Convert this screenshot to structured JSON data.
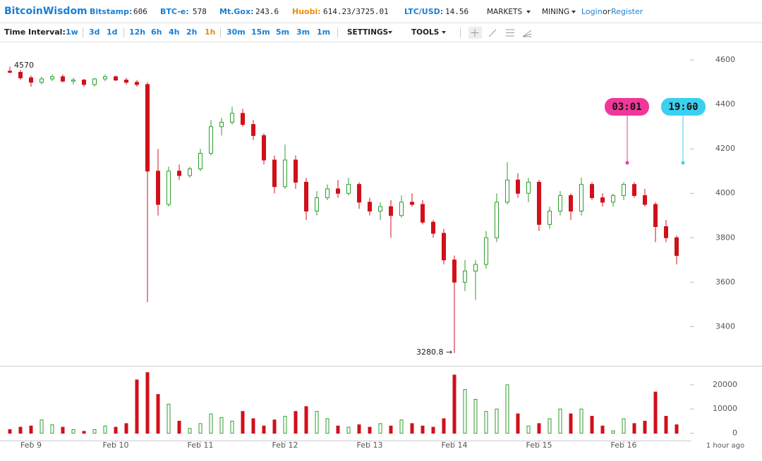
{
  "header": {
    "brand": "BitcoinWisdom",
    "tickers": [
      {
        "label": "Bitstamp:",
        "value": "606",
        "color": "#1a7fd4"
      },
      {
        "label": "BTC-e:",
        "value": "578",
        "color": "#1a7fd4"
      },
      {
        "label": "Mt.Gox:",
        "value": "243.6",
        "color": "#1a7fd4"
      },
      {
        "label": "Huobi:",
        "value": "614.23/3725.01",
        "color": "#f08c00"
      },
      {
        "label": "LTC/USD:",
        "value": "14.56",
        "color": "#1a7fd4"
      }
    ],
    "menus": [
      "MARKETS",
      "MINING"
    ],
    "login": "Login",
    "or": "or",
    "register": "Register"
  },
  "toolbar": {
    "label": "Time Interval:",
    "intervals": [
      "1w",
      "3d",
      "1d",
      "12h",
      "6h",
      "4h",
      "2h",
      "1h",
      "30m",
      "15m",
      "5m",
      "3m",
      "1m"
    ],
    "active_interval": 7,
    "settings": "SETTINGS",
    "tools": "TOOLS"
  },
  "chart_data": {
    "type": "candlestick",
    "categories": [
      null,
      null,
      "Feb 9",
      null,
      null,
      null,
      null,
      null,
      null,
      null,
      "Feb 10",
      null,
      null,
      null,
      null,
      null,
      null,
      null,
      "Feb 11",
      null,
      null,
      null,
      null,
      null,
      null,
      null,
      "Feb 12",
      null,
      null,
      null,
      null,
      null,
      null,
      null,
      "Feb 13",
      null,
      null,
      null,
      null,
      null,
      null,
      null,
      "Feb 14",
      null,
      null,
      null,
      null,
      null,
      null,
      null,
      "Feb 15",
      null,
      null,
      null,
      null,
      null,
      null,
      null,
      "Feb 16",
      null,
      null,
      null,
      null,
      null
    ],
    "open": [
      4550,
      4545,
      4520,
      4500,
      4515,
      4525,
      4505,
      4510,
      4490,
      4515,
      4525,
      4510,
      4500,
      4490,
      4100,
      3950,
      4100,
      4080,
      4110,
      4180,
      4300,
      4320,
      4360,
      4310,
      4260,
      4150,
      4030,
      4150,
      4050,
      3920,
      3980,
      4020,
      4000,
      4040,
      3960,
      3920,
      3940,
      3900,
      3960,
      3950,
      3870,
      3820,
      3700,
      3600,
      3650,
      3680,
      3800,
      3960,
      4060,
      4000,
      4050,
      3860,
      3920,
      3990,
      3920,
      4040,
      3980,
      3960,
      3990,
      4040,
      3990,
      3950,
      3850,
      3800
    ],
    "high": [
      4570,
      4555,
      4530,
      4525,
      4535,
      4535,
      4520,
      4515,
      4520,
      4535,
      4530,
      4520,
      4510,
      4500,
      4200,
      4120,
      4130,
      4120,
      4200,
      4330,
      4340,
      4390,
      4380,
      4330,
      4270,
      4170,
      4220,
      4170,
      4070,
      4010,
      4040,
      4060,
      4070,
      4050,
      3980,
      3960,
      3970,
      3990,
      4000,
      3970,
      3880,
      3840,
      3720,
      3700,
      3700,
      3830,
      4000,
      4140,
      4090,
      4070,
      4060,
      3940,
      4010,
      4000,
      4070,
      4050,
      4000,
      4000,
      4050,
      4050,
      4020,
      3960,
      3880,
      3810
    ],
    "low": [
      4540,
      4510,
      4480,
      4490,
      4505,
      4500,
      4490,
      4480,
      4480,
      4505,
      4505,
      4490,
      4480,
      3510,
      3900,
      3940,
      4060,
      4070,
      4100,
      4170,
      4260,
      4310,
      4300,
      4240,
      4130,
      4000,
      4020,
      4020,
      3880,
      3900,
      3970,
      3980,
      3990,
      3930,
      3900,
      3880,
      3800,
      3890,
      3940,
      3860,
      3800,
      3680,
      3280.8,
      3560,
      3520,
      3660,
      3780,
      3950,
      3980,
      3960,
      3830,
      3840,
      3900,
      3880,
      3900,
      3970,
      3940,
      3940,
      3970,
      3980,
      3940,
      3780,
      3780,
      3680
    ],
    "close": [
      4545,
      4520,
      4500,
      4515,
      4525,
      4505,
      4510,
      4490,
      4515,
      4525,
      4510,
      4500,
      4490,
      4100,
      3950,
      4100,
      4080,
      4110,
      4180,
      4300,
      4320,
      4360,
      4310,
      4260,
      4150,
      4030,
      4150,
      4050,
      3920,
      3980,
      4020,
      4000,
      4040,
      3960,
      3920,
      3940,
      3900,
      3960,
      3950,
      3870,
      3820,
      3700,
      3600,
      3650,
      3680,
      3800,
      3960,
      4060,
      4000,
      4050,
      3860,
      3920,
      3990,
      3920,
      4040,
      3980,
      3960,
      3990,
      4040,
      3990,
      3950,
      3850,
      3800,
      3720
    ],
    "volume": [
      1500,
      2500,
      3000,
      5500,
      3500,
      2500,
      1500,
      800,
      1500,
      3000,
      2500,
      4000,
      22000,
      25000,
      16000,
      12000,
      5000,
      2000,
      4000,
      8000,
      6500,
      5000,
      9000,
      6000,
      3000,
      5500,
      7000,
      9000,
      11000,
      9000,
      6000,
      3000,
      2500,
      3500,
      2500,
      4000,
      3000,
      5500,
      4000,
      3000,
      2500,
      6000,
      24000,
      18000,
      14000,
      9000,
      10000,
      20000,
      8000,
      3000,
      4000,
      6000,
      10000,
      8000,
      10000,
      7000,
      3000,
      1000,
      6000,
      4000,
      5000,
      17000,
      7000,
      3500
    ],
    "up_color": "#2e9e2e",
    "down_color": "#d0101a",
    "ylim": [
      3220,
      4680
    ],
    "yticks": [
      3400,
      3600,
      3800,
      4000,
      4200,
      4400,
      4600
    ],
    "volume_ylim": [
      -3000,
      27500
    ],
    "volume_yticks": [
      0,
      10000,
      20000
    ],
    "high_label": "4570",
    "low_label": "3280.8 →",
    "x_note": "1 hour ago",
    "time_markers": [
      "03:01",
      "19:00"
    ]
  }
}
